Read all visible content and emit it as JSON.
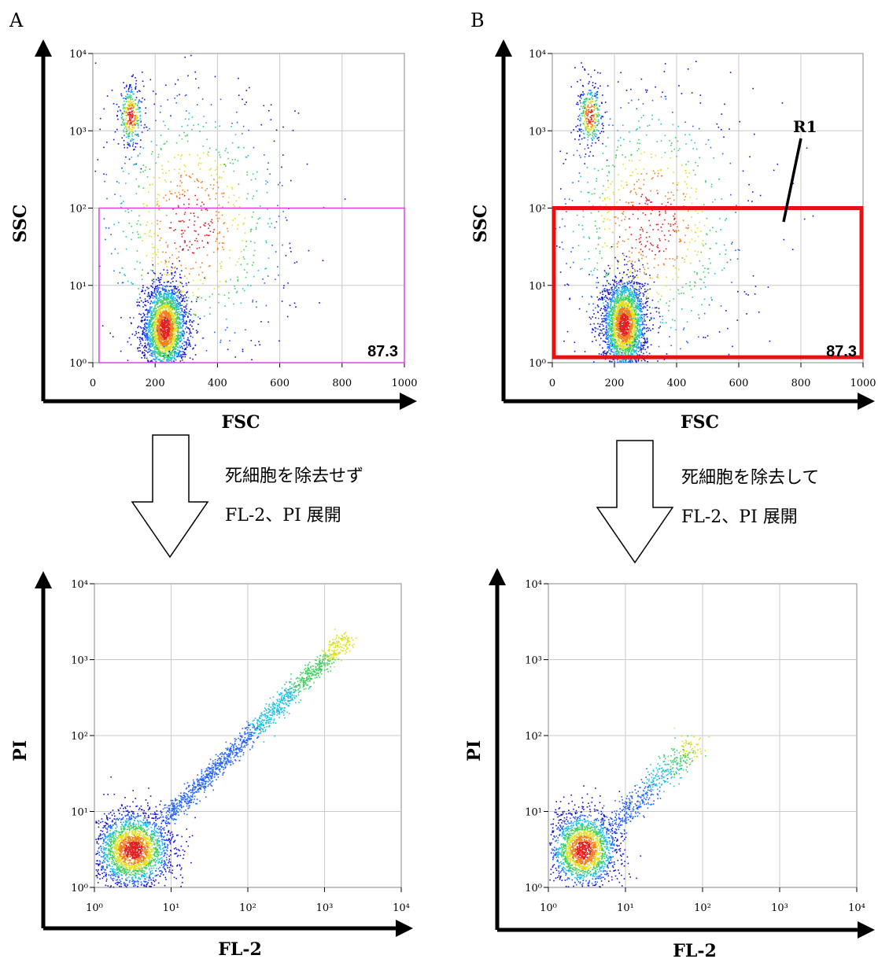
{
  "panels": {
    "A": {
      "label": "A"
    },
    "B": {
      "label": "B"
    }
  },
  "gate_label": "R1",
  "arrows": {
    "left": {
      "line1": "死細胞を除去せず",
      "line2": "FL-2、PI  展開"
    },
    "right": {
      "line1": "死細胞を除去して",
      "line2": "FL-2、PI  展開"
    }
  },
  "colors": {
    "axis": "#000000",
    "grid": "#c8c8c8",
    "gate_A": "#e040e0",
    "gate_B": "#e81010",
    "dots": [
      "#1010d0",
      "#2060ff",
      "#20c0e0",
      "#40d060",
      "#e0e020",
      "#f08020",
      "#e02020"
    ]
  },
  "chart_data": [
    {
      "id": "A-top",
      "type": "scatter",
      "xlabel": "FSC",
      "ylabel": "SSC",
      "x_ticks": [
        "0",
        "200",
        "400",
        "600",
        "800",
        "1000"
      ],
      "y_ticks": [
        "10⁰",
        "10¹",
        "10²",
        "10³",
        "10⁴"
      ],
      "xlim": [
        0,
        1000
      ],
      "ylim_log10": [
        0,
        4
      ],
      "gate": {
        "x": [
          20,
          1000
        ],
        "y_log10": [
          0,
          2
        ]
      },
      "annotation": "87.3",
      "populations": [
        {
          "x": 230,
          "y_log10": 0.45,
          "sx": 35,
          "sy": 0.3,
          "n": 2600
        },
        {
          "x": 120,
          "y_log10": 3.2,
          "sx": 20,
          "sy": 0.2,
          "n": 350
        },
        {
          "x": 320,
          "y_log10": 1.8,
          "sx": 160,
          "sy": 0.9,
          "n": 900
        }
      ]
    },
    {
      "id": "B-top",
      "type": "scatter",
      "xlabel": "FSC",
      "ylabel": "SSC",
      "x_ticks": [
        "0",
        "200",
        "400",
        "600",
        "800",
        "1000"
      ],
      "y_ticks": [
        "10⁰",
        "10¹",
        "10²",
        "10³",
        "10⁴"
      ],
      "xlim": [
        0,
        1000
      ],
      "ylim_log10": [
        0,
        4
      ],
      "gate": {
        "x": [
          0,
          1000
        ],
        "y_log10": [
          0.05,
          2
        ]
      },
      "annotation": "87.3",
      "populations": [
        {
          "x": 230,
          "y_log10": 0.5,
          "sx": 35,
          "sy": 0.3,
          "n": 2600
        },
        {
          "x": 120,
          "y_log10": 3.2,
          "sx": 20,
          "sy": 0.2,
          "n": 350
        },
        {
          "x": 320,
          "y_log10": 1.8,
          "sx": 160,
          "sy": 0.9,
          "n": 900
        }
      ]
    },
    {
      "id": "A-bottom",
      "type": "scatter",
      "xlabel": "FL-2",
      "ylabel": "PI",
      "x_ticks": [
        "10⁰",
        "10¹",
        "10²",
        "10³",
        "10⁴"
      ],
      "y_ticks": [
        "10⁰",
        "10¹",
        "10²",
        "10³",
        "10⁴"
      ],
      "xlim_log10": [
        0,
        4
      ],
      "ylim_log10": [
        0,
        4
      ],
      "populations": [
        {
          "x_log10": 0.5,
          "y_log10": 0.5,
          "sx": 0.25,
          "sy": 0.25,
          "n": 2400
        },
        {
          "diagonal": true,
          "from_log10": 0.9,
          "to_log10": 3.3,
          "spread": 0.1,
          "n": 1400
        }
      ]
    },
    {
      "id": "B-bottom",
      "type": "scatter",
      "xlabel": "FL-2",
      "ylabel": "PI",
      "x_ticks": [
        "10⁰",
        "10¹",
        "10²",
        "10³",
        "10⁴"
      ],
      "y_ticks": [
        "10⁰",
        "10¹",
        "10²",
        "10³",
        "10⁴"
      ],
      "xlim_log10": [
        0,
        4
      ],
      "ylim_log10": [
        0,
        4
      ],
      "populations": [
        {
          "x_log10": 0.45,
          "y_log10": 0.5,
          "sx": 0.22,
          "sy": 0.25,
          "n": 2000
        },
        {
          "diagonal": true,
          "from_log10": 0.8,
          "to_log10": 1.9,
          "spread": 0.15,
          "n": 500
        }
      ]
    }
  ]
}
